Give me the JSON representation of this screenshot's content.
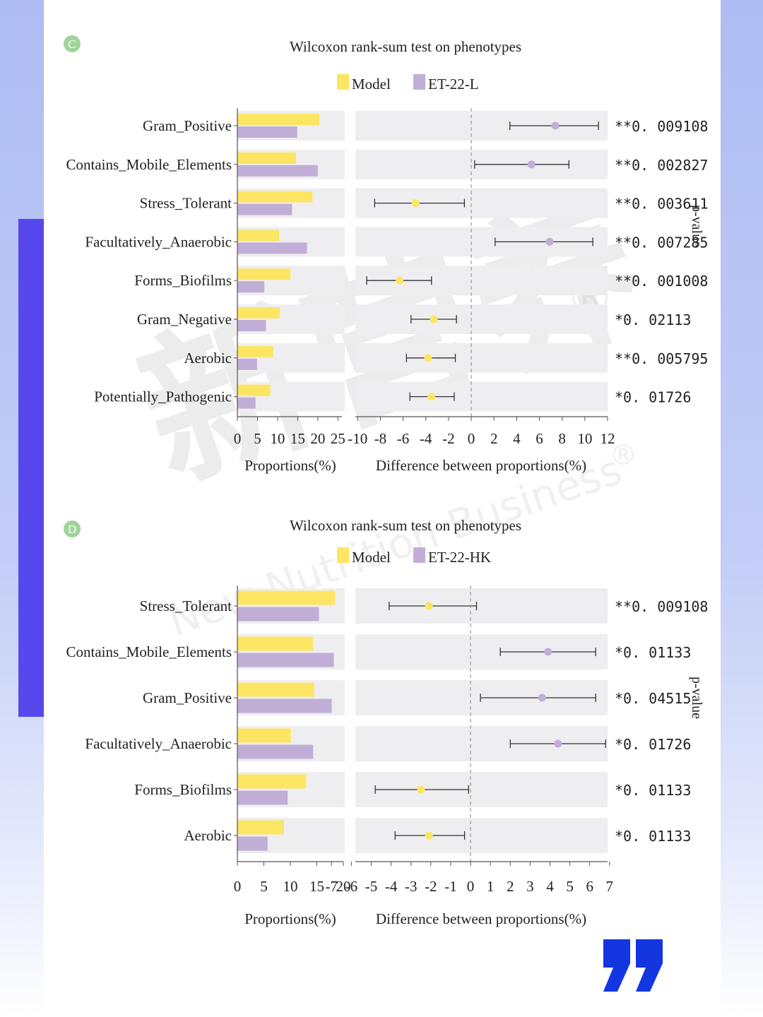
{
  "watermark": {
    "chinese": "新营养",
    "english": "New Nutrition Business",
    "registered": "®"
  },
  "panels": [
    {
      "badge": "C",
      "chart_data": {
        "type": "bar",
        "title": "Wilcoxon rank-sum test on phenotypes",
        "legend": [
          {
            "name": "Model",
            "color": "#fde564"
          },
          {
            "name": "ET-22-L",
            "color": "#c1aed7"
          }
        ],
        "categories": [
          "Gram_Positive",
          "Contains_Mobile_Elements",
          "Stress_Tolerant",
          "Facultatively_Anaerobic",
          "Forms_Biofilms",
          "Gram_Negative",
          "Aerobic",
          "Potentially_Pathogenic"
        ],
        "series": [
          {
            "name": "Model",
            "values": [
              20.4,
              14.6,
              18.7,
              10.4,
              13.2,
              10.6,
              8.9,
              8.2
            ]
          },
          {
            "name": "ET-22-L",
            "values": [
              14.9,
              20.0,
              13.6,
              17.3,
              6.7,
              7.1,
              4.9,
              4.5
            ]
          }
        ],
        "xlabel": "Proportions(%)",
        "xlim": [
          0,
          26
        ],
        "xticks": [
          "0",
          "5",
          "10",
          "15",
          "20",
          "25"
        ],
        "diff": {
          "xlabel": "Difference between proportions(%)",
          "xlim": [
            -10.2,
            12.0
          ],
          "xticks": [
            "-10",
            "-8",
            "-6",
            "-4",
            "-2",
            "0",
            "2",
            "4",
            "6",
            "8",
            "10",
            "12"
          ],
          "estimates": [
            7.4,
            5.3,
            -4.9,
            6.9,
            -6.3,
            -3.3,
            -3.8,
            -3.5
          ],
          "ci_low": [
            3.4,
            0.3,
            -8.5,
            2.1,
            -9.2,
            -5.3,
            -5.7,
            -5.4
          ],
          "ci_high": [
            11.2,
            8.6,
            -0.6,
            10.7,
            -3.5,
            -1.3,
            -1.4,
            -1.5
          ],
          "favors": [
            "ET-22-L",
            "ET-22-L",
            "Model",
            "ET-22-L",
            "Model",
            "Model",
            "Model",
            "Model"
          ]
        },
        "pvalues": [
          "**0. 009108",
          "**0. 002827",
          "**0. 003611",
          "**0. 007285",
          "**0. 001008",
          "*0. 02113",
          "**0. 005795",
          "*0. 01726"
        ],
        "pvalue_label": "p-value"
      }
    },
    {
      "badge": "D",
      "chart_data": {
        "type": "bar",
        "title": "Wilcoxon rank-sum test on phenotypes",
        "legend": [
          {
            "name": "Model",
            "color": "#fde564"
          },
          {
            "name": "ET-22-HK",
            "color": "#c1aed7"
          }
        ],
        "categories": [
          "Stress_Tolerant",
          "Contains_Mobile_Elements",
          "Gram_Positive",
          "Facultatively_Anaerobic",
          "Forms_Biofilms",
          "Aerobic"
        ],
        "series": [
          {
            "name": "Model",
            "values": [
              18.4,
              14.3,
              14.5,
              10.1,
              13.0,
              8.8
            ]
          },
          {
            "name": "ET-22-HK",
            "values": [
              15.4,
              18.2,
              17.8,
              14.3,
              9.5,
              5.7
            ]
          }
        ],
        "xlabel": "Proportions(%)",
        "xlim": [
          0,
          20
        ],
        "xticks": [
          "0",
          "5",
          "10",
          "15",
          "20"
        ],
        "diff": {
          "xlabel": "Difference between proportions(%)",
          "xlim": [
            -5.8,
            6.9
          ],
          "xticks": [
            "-7",
            "-6",
            "-5",
            "-4",
            "-3",
            "-2",
            "-1",
            "0",
            "1",
            "2",
            "3",
            "4",
            "5",
            "6",
            "7"
          ],
          "estimates": [
            -2.1,
            3.9,
            3.6,
            4.4,
            -2.5,
            -2.1
          ],
          "ci_low": [
            -4.1,
            1.5,
            0.5,
            2.0,
            -4.8,
            -3.8
          ],
          "ci_high": [
            0.3,
            6.3,
            6.3,
            6.8,
            -0.1,
            -0.3
          ],
          "favors": [
            "Model",
            "ET-22-HK",
            "ET-22-HK",
            "ET-22-HK",
            "Model",
            "Model"
          ]
        },
        "pvalues": [
          "**0. 009108",
          "*0. 01133",
          "*0. 04515",
          "*0. 01726",
          "*0. 01133",
          "*0. 01133"
        ],
        "pvalue_label": "p-value"
      }
    }
  ]
}
